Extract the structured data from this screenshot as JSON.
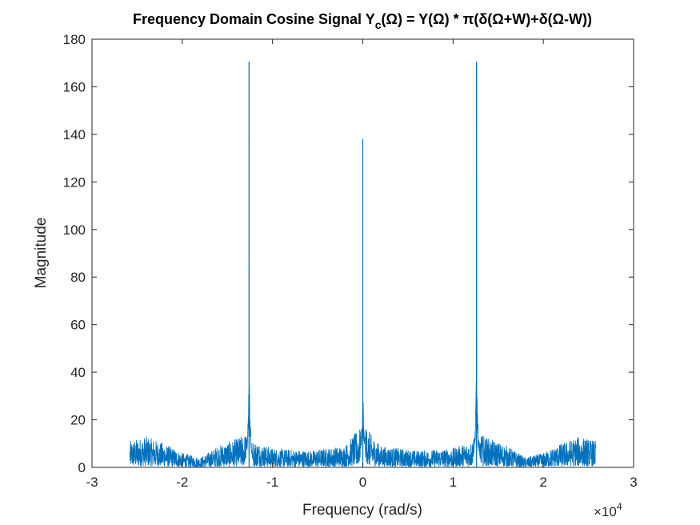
{
  "chart_data": {
    "type": "line",
    "title": {
      "lead": "Frequency Domain Cosine Signal Y",
      "sub": "c",
      "rest": "(Ω) = Y(Ω) * π(δ(Ω+W)+δ(Ω-W))"
    },
    "xlabel": "Frequency (rad/s)",
    "ylabel": "Magnitude",
    "x_exponent_label": {
      "base": "×10",
      "exp": "4"
    },
    "x_exponent": 4,
    "xlim": [
      -3,
      3
    ],
    "ylim": [
      0,
      180
    ],
    "xticks": [
      -3,
      -2,
      -1,
      0,
      1,
      2,
      3
    ],
    "yticks": [
      0,
      20,
      40,
      60,
      80,
      100,
      120,
      140,
      160,
      180
    ],
    "grid": false,
    "series": [
      {
        "color": "#0072BD",
        "x_range": [
          -2.58,
          2.58
        ],
        "noise_floor_envelope": {
          "x": [
            -2.58,
            -2.4,
            -2.2,
            -2.0,
            -1.8,
            -1.6,
            -1.4,
            -1.3,
            -1.2,
            -1.0,
            -0.6,
            -0.2,
            -0.05,
            0.05,
            0.2,
            0.6,
            1.0,
            1.2,
            1.3,
            1.4,
            1.6,
            1.8,
            2.0,
            2.2,
            2.4,
            2.58
          ],
          "y": [
            11,
            13,
            10,
            6,
            4,
            9,
            12,
            14,
            11,
            8,
            7,
            9,
            16,
            16,
            9,
            7,
            8,
            11,
            14,
            12,
            9,
            4,
            6,
            10,
            13,
            11
          ]
        },
        "peaks": [
          {
            "x": -1.26,
            "y": 170.5
          },
          {
            "x": 0.0,
            "y": 138
          },
          {
            "x": 1.26,
            "y": 170.5
          }
        ]
      }
    ]
  }
}
